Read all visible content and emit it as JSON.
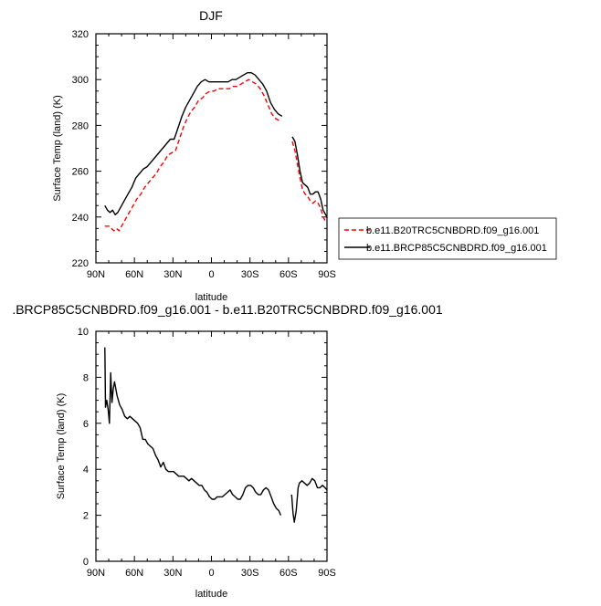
{
  "chart_data": [
    {
      "type": "line",
      "title": "DJF",
      "xlabel": "latitude",
      "ylabel": "Surface Temp (land) (K)",
      "xlim": [
        90,
        -90
      ],
      "ylim": [
        220,
        320
      ],
      "xticks": [
        90,
        60,
        30,
        0,
        -30,
        -60,
        -90
      ],
      "xticklabels": [
        "90N",
        "60N",
        "30N",
        "0",
        "30S",
        "60S",
        "90S"
      ],
      "yticks": [
        220,
        240,
        260,
        280,
        300,
        320
      ],
      "yticklabels": [
        "220",
        "240",
        "260",
        "280",
        "300",
        "320"
      ],
      "legend_position": "right",
      "series": [
        {
          "name": "b.e11.B20TRC5CNBDRD.f09_g16.001",
          "color": "#ff0000",
          "dash": "dashed",
          "segments": [
            [
              [
                83,
                236
              ],
              [
                80,
                236
              ],
              [
                78,
                235
              ],
              [
                76,
                234
              ],
              [
                74,
                235
              ],
              [
                72,
                234
              ],
              [
                70,
                236
              ],
              [
                67,
                239
              ],
              [
                64,
                242
              ],
              [
                61,
                245
              ],
              [
                58,
                248
              ],
              [
                55,
                250
              ],
              [
                52,
                253
              ],
              [
                49,
                255
              ],
              [
                46,
                257
              ],
              [
                43,
                259
              ],
              [
                40,
                262
              ],
              [
                37,
                264
              ],
              [
                34,
                267
              ],
              [
                31,
                268
              ],
              [
                28,
                269
              ],
              [
                25,
                274
              ],
              [
                22,
                279
              ],
              [
                19,
                283
              ],
              [
                16,
                286
              ],
              [
                13,
                288
              ],
              [
                10,
                291
              ],
              [
                7,
                292
              ],
              [
                4,
                294
              ],
              [
                1,
                295
              ],
              [
                -2,
                295
              ],
              [
                -5,
                296
              ],
              [
                -8,
                296
              ],
              [
                -11,
                296
              ],
              [
                -14,
                296
              ],
              [
                -17,
                297
              ],
              [
                -20,
                297
              ],
              [
                -23,
                298
              ],
              [
                -26,
                299
              ],
              [
                -29,
                300
              ],
              [
                -32,
                299
              ],
              [
                -35,
                298
              ],
              [
                -38,
                296
              ],
              [
                -41,
                293
              ],
              [
                -44,
                289
              ],
              [
                -47,
                285
              ],
              [
                -50,
                283
              ],
              [
                -53,
                282
              ]
            ],
            [
              [
                -63,
                273
              ],
              [
                -65,
                269
              ],
              [
                -67,
                263
              ],
              [
                -69,
                257
              ],
              [
                -71,
                252
              ],
              [
                -73,
                250
              ],
              [
                -75,
                249
              ],
              [
                -77,
                247
              ],
              [
                -79,
                246
              ],
              [
                -81,
                247
              ],
              [
                -83,
                246
              ],
              [
                -85,
                244
              ],
              [
                -87,
                240
              ],
              [
                -89,
                238
              ]
            ]
          ]
        },
        {
          "name": "b.e11.BRCP85C5CNBDRD.f09_g16.001",
          "color": "#000000",
          "dash": "solid",
          "segments": [
            [
              [
                83,
                245
              ],
              [
                81,
                243
              ],
              [
                79,
                242
              ],
              [
                77,
                243
              ],
              [
                75,
                241
              ],
              [
                73,
                242
              ],
              [
                71,
                244
              ],
              [
                68,
                247
              ],
              [
                65,
                250
              ],
              [
                62,
                253
              ],
              [
                59,
                257
              ],
              [
                56,
                259
              ],
              [
                53,
                261
              ],
              [
                50,
                262
              ],
              [
                47,
                264
              ],
              [
                44,
                266
              ],
              [
                41,
                268
              ],
              [
                38,
                270
              ],
              [
                35,
                272
              ],
              [
                32,
                274
              ],
              [
                29,
                274
              ],
              [
                26,
                279
              ],
              [
                23,
                284
              ],
              [
                20,
                288
              ],
              [
                17,
                291
              ],
              [
                14,
                294
              ],
              [
                11,
                297
              ],
              [
                8,
                299
              ],
              [
                5,
                300
              ],
              [
                2,
                299
              ],
              [
                -1,
                299
              ],
              [
                -4,
                299
              ],
              [
                -7,
                299
              ],
              [
                -10,
                299
              ],
              [
                -13,
                299
              ],
              [
                -16,
                300
              ],
              [
                -19,
                300
              ],
              [
                -22,
                301
              ],
              [
                -25,
                302
              ],
              [
                -28,
                303
              ],
              [
                -31,
                303
              ],
              [
                -34,
                302
              ],
              [
                -37,
                300
              ],
              [
                -40,
                298
              ],
              [
                -43,
                295
              ],
              [
                -46,
                290
              ],
              [
                -49,
                287
              ],
              [
                -52,
                285
              ],
              [
                -55,
                284
              ]
            ],
            [
              [
                -63,
                275
              ],
              [
                -65,
                273
              ],
              [
                -67,
                267
              ],
              [
                -69,
                260
              ],
              [
                -71,
                255
              ],
              [
                -73,
                254
              ],
              [
                -75,
                253
              ],
              [
                -77,
                250
              ],
              [
                -79,
                250
              ],
              [
                -81,
                251
              ],
              [
                -83,
                251
              ],
              [
                -85,
                248
              ],
              [
                -87,
                243
              ],
              [
                -89,
                241
              ],
              [
                -90,
                240
              ]
            ]
          ]
        }
      ]
    },
    {
      "type": "line",
      "title": ".BRCP85C5CNBDRD.f09_g16.001 - b.e11.B20TRC5CNBDRD.f09_g16.001",
      "xlabel": "latitude",
      "ylabel": "Surface Temp (land) (K)",
      "xlim": [
        90,
        -90
      ],
      "ylim": [
        0,
        10
      ],
      "xticks": [
        90,
        60,
        30,
        0,
        -30,
        -60,
        -90
      ],
      "xticklabels": [
        "90N",
        "60N",
        "30N",
        "0",
        "30S",
        "60S",
        "90S"
      ],
      "yticks": [
        0,
        2,
        4,
        6,
        8,
        10
      ],
      "yticklabels": [
        "0",
        "2",
        "4",
        "6",
        "8",
        "10"
      ],
      "series": [
        {
          "color": "#000000",
          "dash": "solid",
          "segments": [
            [
              [
                83,
                9.3
              ],
              [
                82.5,
                6.7
              ],
              [
                81.5,
                7.0
              ],
              [
                80.5,
                6.6
              ],
              [
                79.5,
                6.0
              ],
              [
                78.5,
                8.2
              ],
              [
                77.5,
                6.9
              ],
              [
                76.5,
                7.5
              ],
              [
                75.5,
                7.8
              ],
              [
                73.5,
                7.2
              ],
              [
                71.5,
                6.8
              ],
              [
                69.5,
                6.6
              ],
              [
                67.5,
                6.3
              ],
              [
                65.5,
                6.2
              ],
              [
                63.5,
                6.3
              ],
              [
                61.5,
                6.2
              ],
              [
                59.5,
                6.1
              ],
              [
                57.5,
                6.0
              ],
              [
                55.5,
                5.8
              ],
              [
                53.5,
                5.3
              ],
              [
                51.5,
                5.3
              ],
              [
                49.5,
                5.1
              ],
              [
                47.5,
                5.0
              ],
              [
                45.5,
                4.9
              ],
              [
                43.5,
                4.6
              ],
              [
                41.5,
                4.4
              ],
              [
                39.5,
                4.1
              ],
              [
                37.5,
                4.3
              ],
              [
                35.5,
                4.0
              ],
              [
                33.5,
                3.9
              ],
              [
                31.5,
                3.9
              ],
              [
                29.5,
                3.9
              ],
              [
                27.5,
                3.8
              ],
              [
                25.5,
                3.7
              ],
              [
                23.5,
                3.7
              ],
              [
                21.5,
                3.7
              ],
              [
                19.5,
                3.6
              ],
              [
                17.5,
                3.5
              ],
              [
                15.5,
                3.6
              ],
              [
                13.5,
                3.5
              ],
              [
                11.5,
                3.4
              ],
              [
                9.5,
                3.3
              ],
              [
                7.5,
                3.3
              ],
              [
                5.5,
                3.1
              ],
              [
                3.5,
                3.0
              ],
              [
                1.5,
                2.8
              ],
              [
                -0.5,
                2.7
              ],
              [
                -2.5,
                2.7
              ],
              [
                -4.5,
                2.8
              ],
              [
                -6.5,
                2.8
              ],
              [
                -8.5,
                2.8
              ],
              [
                -10.5,
                2.9
              ],
              [
                -12.5,
                3.0
              ],
              [
                -14.5,
                3.1
              ],
              [
                -16.5,
                2.9
              ],
              [
                -18.5,
                2.8
              ],
              [
                -20.5,
                2.7
              ],
              [
                -22.5,
                2.7
              ],
              [
                -24.5,
                2.9
              ],
              [
                -26.5,
                3.2
              ],
              [
                -28.5,
                3.3
              ],
              [
                -30.5,
                3.3
              ],
              [
                -32.5,
                3.2
              ],
              [
                -34.5,
                3.0
              ],
              [
                -36.5,
                2.9
              ],
              [
                -38.5,
                2.9
              ],
              [
                -40.5,
                3.1
              ],
              [
                -42.5,
                3.2
              ],
              [
                -44.5,
                3.1
              ],
              [
                -46.5,
                2.8
              ],
              [
                -48.5,
                2.5
              ],
              [
                -50.5,
                2.3
              ],
              [
                -52.5,
                2.2
              ],
              [
                -54,
                2.0
              ]
            ],
            [
              [
                -62.5,
                2.9
              ],
              [
                -63.5,
                2.1
              ],
              [
                -64.5,
                1.7
              ],
              [
                -66,
                2.2
              ],
              [
                -67.5,
                3.2
              ],
              [
                -68.5,
                3.4
              ],
              [
                -70.5,
                3.5
              ],
              [
                -72.5,
                3.4
              ],
              [
                -74.5,
                3.3
              ],
              [
                -76.5,
                3.4
              ],
              [
                -78.5,
                3.6
              ],
              [
                -80.5,
                3.5
              ],
              [
                -82.5,
                3.2
              ],
              [
                -84.5,
                3.2
              ],
              [
                -86.5,
                3.3
              ],
              [
                -88.5,
                3.2
              ],
              [
                -90,
                3.1
              ]
            ]
          ]
        }
      ]
    }
  ]
}
